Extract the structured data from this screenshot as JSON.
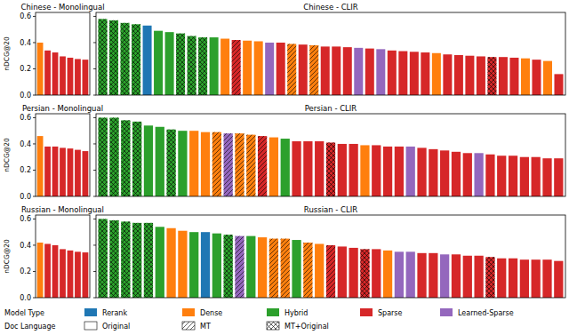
{
  "chart_data": {
    "type": "bar",
    "legend": "lower left",
    "legend_groups": [
      {
        "title": "Model Type",
        "entries": [
          {
            "name": "Rerank",
            "color": "#1f77b4"
          },
          {
            "name": "Dense",
            "color": "#ff7f0e"
          },
          {
            "name": "Hybrid",
            "color": "#2ca02c"
          },
          {
            "name": "Sparse",
            "color": "#d62728"
          },
          {
            "name": "Learned-Sparse",
            "color": "#9467bd"
          }
        ]
      },
      {
        "title": "Doc Language",
        "entries": [
          {
            "name": "Original",
            "marker": "none"
          },
          {
            "name": "MT",
            "marker": "hatch"
          },
          {
            "name": "MT+Original",
            "marker": "crosshatch"
          }
        ]
      }
    ],
    "panels": [
      {
        "title": "Chinese - Monolingual",
        "ylabel": "nDCG@20",
        "tick_labels": "y",
        "ylim": [
          0,
          0.63
        ],
        "yticks": [
          {
            "value": 0,
            "label": "0.0"
          },
          0.2,
          0.4,
          0.6
        ],
        "categories": [
          null,
          null,
          null,
          null,
          null,
          null,
          null
        ],
        "values": [
          0.4,
          0.34,
          0.325,
          0.295,
          0.285,
          0.275,
          0.27
        ],
        "colors": [
          "#ff7f0e",
          "#d62728",
          "#d62728",
          "#d62728",
          "#d62728",
          "#d62728",
          "#d62728"
        ],
        "markers": [
          "none",
          "none",
          "none",
          "none",
          "none",
          "none",
          "none"
        ]
      },
      {
        "title": "Chinese - CLIR",
        "tick_labels": false,
        "ylim": [
          0,
          0.63
        ],
        "yticks": [
          0,
          0.2,
          0.4,
          0.6
        ],
        "categories": [
          null,
          null,
          null,
          null,
          null,
          null,
          null,
          null,
          null,
          null,
          null,
          null,
          null,
          null,
          null,
          null,
          null,
          null,
          null,
          null,
          null,
          null,
          null,
          null,
          null,
          null,
          null,
          null,
          null,
          null,
          null,
          null,
          null,
          null,
          null,
          null,
          null,
          null,
          null,
          null,
          null,
          null
        ],
        "values": [
          0.58,
          0.57,
          0.55,
          0.54,
          0.53,
          0.49,
          0.48,
          0.47,
          0.45,
          0.44,
          0.44,
          0.43,
          0.42,
          0.415,
          0.41,
          0.4,
          0.4,
          0.39,
          0.385,
          0.38,
          0.37,
          0.37,
          0.365,
          0.36,
          0.355,
          0.35,
          0.34,
          0.335,
          0.33,
          0.325,
          0.32,
          0.31,
          0.305,
          0.3,
          0.295,
          0.29,
          0.29,
          0.285,
          0.28,
          0.27,
          0.26,
          0.16
        ],
        "colors": [
          "#2ca02c",
          "#2ca02c",
          "#2ca02c",
          "#2ca02c",
          "#1f77b4",
          "#2ca02c",
          "#2ca02c",
          "#2ca02c",
          "#2ca02c",
          "#2ca02c",
          "#2ca02c",
          "#ff7f0e",
          "#d62728",
          "#ff7f0e",
          "#ff7f0e",
          "#9467bd",
          "#d62728",
          "#ff7f0e",
          "#d62728",
          "#ff7f0e",
          "#d62728",
          "#d62728",
          "#d62728",
          "#9467bd",
          "#d62728",
          "#9467bd",
          "#d62728",
          "#d62728",
          "#d62728",
          "#d62728",
          "#ff7f0e",
          "#d62728",
          "#d62728",
          "#d62728",
          "#d62728",
          "#d62728",
          "#d62728",
          "#d62728",
          "#ff7f0e",
          "#d62728",
          "#ff7f0e",
          "#d62728"
        ],
        "markers": [
          "crosshatch",
          "crosshatch",
          "crosshatch",
          "crosshatch",
          "none",
          "none",
          "none",
          "crosshatch",
          "crosshatch",
          "crosshatch",
          "none",
          "none",
          "hatch",
          "none",
          "none",
          "none",
          "none",
          "hatch",
          "none",
          "hatch",
          "none",
          "none",
          "none",
          "none",
          "none",
          "none",
          "none",
          "none",
          "none",
          "none",
          "none",
          "none",
          "none",
          "none",
          "none",
          "crosshatch",
          "none",
          "none",
          "none",
          "none",
          "none",
          "none"
        ]
      },
      {
        "title": "Persian - Monolingual",
        "ylabel": "nDCG@20",
        "tick_labels": "y",
        "ylim": [
          0,
          0.63
        ],
        "yticks": [
          {
            "value": 0,
            "label": "0.0"
          },
          0.2,
          0.4,
          0.6
        ],
        "categories": [
          null,
          null,
          null,
          null,
          null,
          null,
          null
        ],
        "values": [
          0.46,
          0.38,
          0.38,
          0.37,
          0.365,
          0.355,
          0.345
        ],
        "colors": [
          "#ff7f0e",
          "#d62728",
          "#d62728",
          "#d62728",
          "#d62728",
          "#d62728",
          "#d62728"
        ],
        "markers": [
          "none",
          "none",
          "none",
          "none",
          "none",
          "none",
          "none"
        ]
      },
      {
        "title": "Persian - CLIR",
        "tick_labels": false,
        "ylim": [
          0,
          0.63
        ],
        "yticks": [
          0,
          0.2,
          0.4,
          0.6
        ],
        "categories": [
          null,
          null,
          null,
          null,
          null,
          null,
          null,
          null,
          null,
          null,
          null,
          null,
          null,
          null,
          null,
          null,
          null,
          null,
          null,
          null,
          null,
          null,
          null,
          null,
          null,
          null,
          null,
          null,
          null,
          null,
          null,
          null,
          null,
          null,
          null,
          null,
          null,
          null,
          null,
          null,
          null
        ],
        "values": [
          0.6,
          0.6,
          0.58,
          0.57,
          0.54,
          0.53,
          0.51,
          0.5,
          0.5,
          0.49,
          0.49,
          0.48,
          0.48,
          0.47,
          0.46,
          0.45,
          0.44,
          0.42,
          0.42,
          0.42,
          0.41,
          0.4,
          0.4,
          0.39,
          0.39,
          0.38,
          0.38,
          0.38,
          0.37,
          0.36,
          0.35,
          0.34,
          0.33,
          0.33,
          0.32,
          0.31,
          0.31,
          0.3,
          0.3,
          0.29,
          0.29
        ],
        "colors": [
          "#2ca02c",
          "#2ca02c",
          "#2ca02c",
          "#2ca02c",
          "#2ca02c",
          "#2ca02c",
          "#2ca02c",
          "#2ca02c",
          "#ff7f0e",
          "#ff7f0e",
          "#ff7f0e",
          "#9467bd",
          "#ff7f0e",
          "#ff7f0e",
          "#d62728",
          "#ff7f0e",
          "#2ca02c",
          "#d62728",
          "#d62728",
          "#d62728",
          "#d62728",
          "#d62728",
          "#d62728",
          "#ff7f0e",
          "#d62728",
          "#d62728",
          "#d62728",
          "#9467bd",
          "#d62728",
          "#d62728",
          "#d62728",
          "#d62728",
          "#d62728",
          "#9467bd",
          "#d62728",
          "#d62728",
          "#d62728",
          "#d62728",
          "#d62728",
          "#d62728",
          "#d62728"
        ],
        "markers": [
          "crosshatch",
          "crosshatch",
          "crosshatch",
          "crosshatch",
          "none",
          "none",
          "crosshatch",
          "none",
          "none",
          "none",
          "hatch",
          "hatch",
          "hatch",
          "hatch",
          "hatch",
          "none",
          "none",
          "none",
          "none",
          "none",
          "crosshatch",
          "none",
          "none",
          "none",
          "none",
          "none",
          "none",
          "none",
          "none",
          "none",
          "none",
          "none",
          "none",
          "none",
          "none",
          "none",
          "none",
          "none",
          "none",
          "none",
          "none"
        ]
      },
      {
        "title": "Russian - Monolingual",
        "ylabel": "nDCG@20",
        "tick_labels": "y",
        "ylim": [
          0,
          0.63
        ],
        "yticks": [
          {
            "value": 0,
            "label": "0.0"
          },
          0.2,
          0.4,
          0.6
        ],
        "categories": [
          null,
          null,
          null,
          null,
          null,
          null,
          null
        ],
        "values": [
          0.42,
          0.41,
          0.4,
          0.37,
          0.36,
          0.35,
          0.345
        ],
        "colors": [
          "#ff7f0e",
          "#d62728",
          "#d62728",
          "#d62728",
          "#d62728",
          "#d62728",
          "#d62728"
        ],
        "markers": [
          "none",
          "none",
          "none",
          "none",
          "none",
          "none",
          "none"
        ]
      },
      {
        "title": "Russian - CLIR",
        "tick_labels": false,
        "ylim": [
          0,
          0.63
        ],
        "yticks": [
          0,
          0.2,
          0.4,
          0.6
        ],
        "categories": [
          null,
          null,
          null,
          null,
          null,
          null,
          null,
          null,
          null,
          null,
          null,
          null,
          null,
          null,
          null,
          null,
          null,
          null,
          null,
          null,
          null,
          null,
          null,
          null,
          null,
          null,
          null,
          null,
          null,
          null,
          null,
          null,
          null,
          null,
          null,
          null,
          null,
          null,
          null,
          null,
          null
        ],
        "values": [
          0.6,
          0.59,
          0.58,
          0.57,
          0.57,
          0.54,
          0.53,
          0.51,
          0.5,
          0.5,
          0.49,
          0.48,
          0.47,
          0.47,
          0.46,
          0.45,
          0.45,
          0.44,
          0.42,
          0.41,
          0.4,
          0.39,
          0.38,
          0.37,
          0.37,
          0.36,
          0.35,
          0.35,
          0.34,
          0.34,
          0.33,
          0.33,
          0.32,
          0.32,
          0.31,
          0.3,
          0.3,
          0.29,
          0.29,
          0.29,
          0.28
        ],
        "colors": [
          "#2ca02c",
          "#2ca02c",
          "#2ca02c",
          "#2ca02c",
          "#2ca02c",
          "#2ca02c",
          "#ff7f0e",
          "#ff7f0e",
          "#2ca02c",
          "#1f77b4",
          "#2ca02c",
          "#2ca02c",
          "#9467bd",
          "#2ca02c",
          "#ff7f0e",
          "#ff7f0e",
          "#ff7f0e",
          "#2ca02c",
          "#ff7f0e",
          "#ff7f0e",
          "#d62728",
          "#d62728",
          "#d62728",
          "#d62728",
          "#d62728",
          "#ff7f0e",
          "#9467bd",
          "#9467bd",
          "#d62728",
          "#d62728",
          "#9467bd",
          "#d62728",
          "#d62728",
          "#d62728",
          "#d62728",
          "#d62728",
          "#d62728",
          "#d62728",
          "#d62728",
          "#d62728",
          "#d62728"
        ],
        "markers": [
          "crosshatch",
          "crosshatch",
          "crosshatch",
          "crosshatch",
          "crosshatch",
          "none",
          "none",
          "none",
          "none",
          "none",
          "none",
          "crosshatch",
          "hatch",
          "none",
          "none",
          "hatch",
          "hatch",
          "none",
          "hatch",
          "none",
          "hatch",
          "none",
          "none",
          "crosshatch",
          "none",
          "none",
          "none",
          "none",
          "none",
          "none",
          "none",
          "none",
          "none",
          "none",
          "crosshatch",
          "none",
          "none",
          "none",
          "none",
          "none",
          "none"
        ]
      }
    ]
  }
}
